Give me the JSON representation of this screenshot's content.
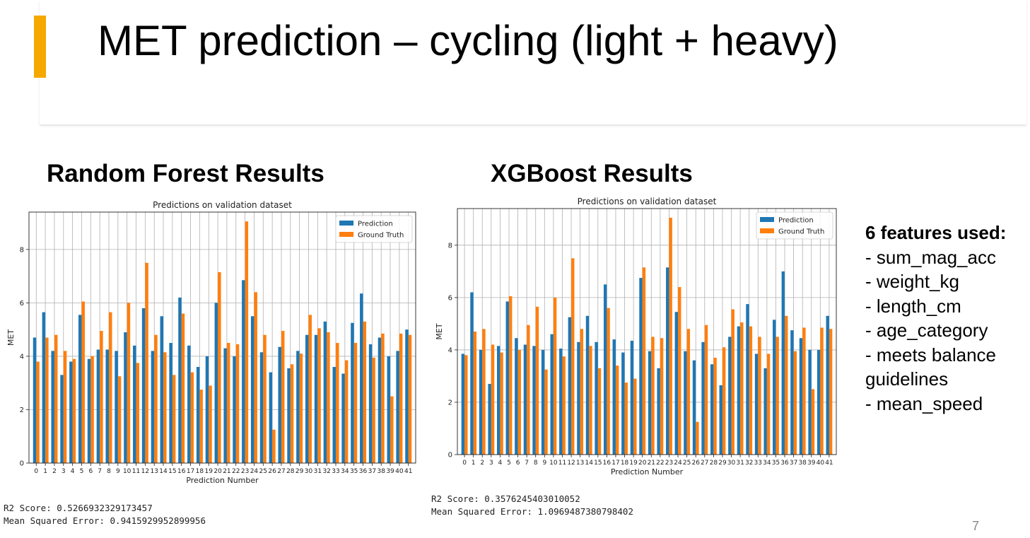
{
  "slide": {
    "title": "MET prediction – cycling (light + heavy)",
    "accent_color": "#F5A800",
    "page_number": "7"
  },
  "left_panel": {
    "heading": "Random Forest Results",
    "r2_text": "R2 Score: 0.5266932329173457",
    "mse_text": "Mean Squared Error: 0.9415929952899956"
  },
  "right_panel": {
    "heading": "XGBoost Results",
    "r2_text": "R2 Score: 0.3576245403010052",
    "mse_text": "Mean Squared Error: 1.0969487380798402"
  },
  "features": {
    "title": "6 features used:",
    "items": [
      "- sum_mag_acc",
      "- weight_kg",
      "- length_cm",
      "- age_category",
      "- meets balance guidelines",
      "- mean_speed"
    ]
  },
  "chart_data": [
    {
      "type": "bar",
      "title": "Predictions on validation dataset",
      "xlabel": "Prediction Number",
      "ylabel": "MET",
      "categories": [
        "0",
        "1",
        "2",
        "3",
        "4",
        "5",
        "6",
        "7",
        "8",
        "9",
        "10",
        "11",
        "12",
        "13",
        "14",
        "15",
        "16",
        "17",
        "18",
        "19",
        "20",
        "21",
        "22",
        "23",
        "24",
        "25",
        "26",
        "27",
        "28",
        "29",
        "30",
        "31",
        "32",
        "33",
        "34",
        "35",
        "36",
        "37",
        "38",
        "39",
        "40",
        "41"
      ],
      "ylim": [
        0,
        9.4
      ],
      "yticks": [
        0,
        2,
        4,
        6,
        8
      ],
      "grid": true,
      "legend_position": "top-right",
      "series": [
        {
          "name": "Prediction",
          "color": "#1f77b4",
          "values": [
            4.7,
            5.65,
            4.2,
            3.3,
            3.8,
            5.55,
            3.9,
            4.25,
            4.25,
            4.2,
            4.9,
            4.4,
            5.8,
            4.2,
            5.5,
            4.5,
            6.2,
            4.4,
            3.6,
            4.0,
            6.0,
            4.3,
            4.0,
            6.85,
            5.5,
            4.15,
            3.4,
            4.35,
            3.55,
            4.2,
            4.8,
            4.8,
            5.3,
            3.6,
            3.35,
            5.25,
            6.35,
            4.45,
            4.7,
            4.0,
            4.2,
            5.0
          ]
        },
        {
          "name": "Ground Truth",
          "color": "#ff7f0e",
          "values": [
            3.8,
            4.7,
            4.8,
            4.2,
            3.9,
            6.05,
            4.0,
            4.95,
            5.65,
            3.25,
            6.0,
            3.75,
            7.5,
            4.8,
            4.15,
            3.3,
            5.6,
            3.4,
            2.75,
            2.9,
            7.15,
            4.5,
            4.45,
            9.05,
            6.4,
            4.8,
            1.25,
            4.95,
            3.7,
            4.1,
            5.55,
            5.05,
            4.9,
            4.5,
            3.85,
            4.5,
            5.3,
            3.95,
            4.85,
            2.5,
            4.85,
            4.8
          ]
        }
      ]
    },
    {
      "type": "bar",
      "title": "Predictions on validation dataset",
      "xlabel": "Prediction Number",
      "ylabel": "MET",
      "categories": [
        "0",
        "1",
        "2",
        "3",
        "4",
        "5",
        "6",
        "7",
        "8",
        "9",
        "10",
        "11",
        "12",
        "13",
        "14",
        "15",
        "16",
        "17",
        "18",
        "19",
        "20",
        "21",
        "22",
        "23",
        "24",
        "25",
        "26",
        "27",
        "28",
        "29",
        "30",
        "31",
        "32",
        "33",
        "34",
        "35",
        "36",
        "37",
        "38",
        "39",
        "40",
        "41"
      ],
      "ylim": [
        0,
        9.4
      ],
      "yticks": [
        0,
        2,
        4,
        6,
        8
      ],
      "grid": true,
      "legend_position": "top-right",
      "series": [
        {
          "name": "Prediction",
          "color": "#1f77b4",
          "values": [
            3.85,
            6.2,
            4.0,
            2.7,
            4.15,
            5.85,
            4.45,
            4.2,
            4.15,
            4.0,
            4.6,
            4.05,
            5.25,
            4.3,
            5.3,
            4.3,
            6.5,
            4.4,
            3.9,
            4.35,
            6.75,
            3.95,
            3.3,
            7.15,
            5.45,
            3.95,
            3.6,
            4.3,
            3.45,
            2.65,
            4.5,
            4.9,
            5.75,
            3.85,
            3.3,
            5.15,
            7.0,
            4.75,
            4.45,
            4.0,
            4.0,
            5.3
          ]
        },
        {
          "name": "Ground Truth",
          "color": "#ff7f0e",
          "values": [
            3.8,
            4.7,
            4.8,
            4.2,
            3.9,
            6.05,
            4.0,
            4.95,
            5.65,
            3.25,
            6.0,
            3.75,
            7.5,
            4.8,
            4.15,
            3.3,
            5.6,
            3.4,
            2.75,
            2.9,
            7.15,
            4.5,
            4.45,
            9.05,
            6.4,
            4.8,
            1.25,
            4.95,
            3.7,
            4.1,
            5.55,
            5.05,
            4.9,
            4.5,
            3.85,
            4.5,
            5.3,
            3.95,
            4.85,
            2.5,
            4.85,
            4.8
          ]
        }
      ]
    }
  ]
}
